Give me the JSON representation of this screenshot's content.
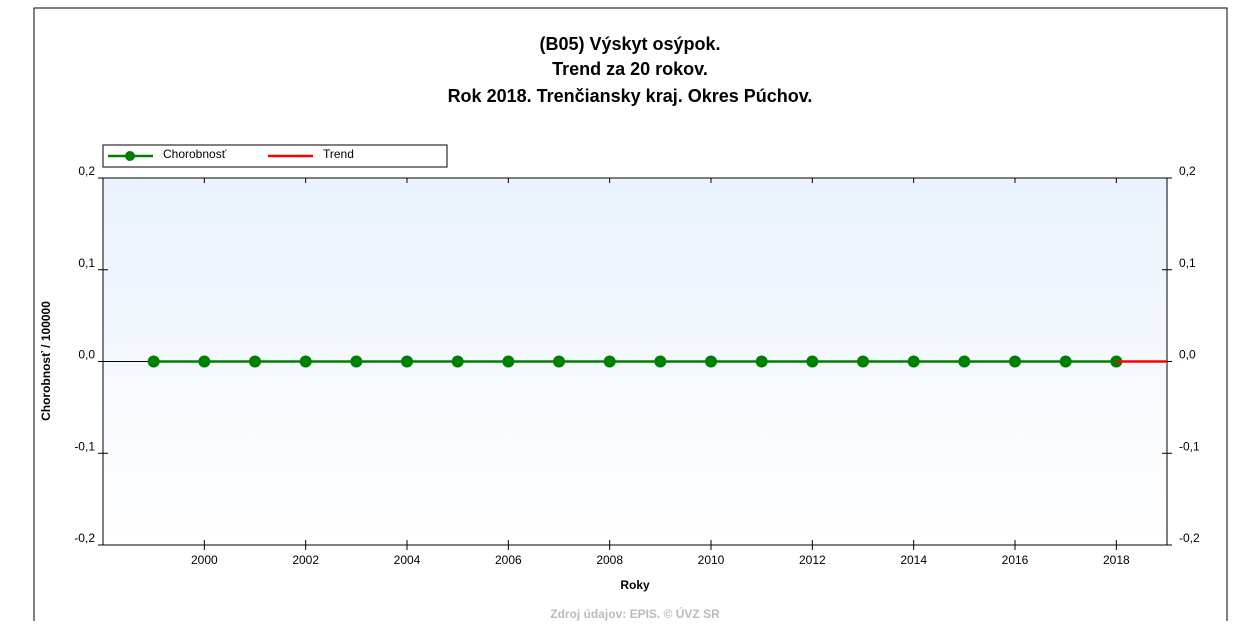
{
  "chart_data": {
    "type": "line",
    "title": [
      "(B05) Výskyt osýpok.",
      "Trend za 20 rokov.",
      "Rok 2018. Trenčiansky kraj. Okres Púchov."
    ],
    "x_label": "Roky",
    "y_label": "Chorobnosť / 100000",
    "source": "Zdroj údajov: EPIS. © ÚVZ SR",
    "x": [
      1999,
      2000,
      2001,
      2002,
      2003,
      2004,
      2005,
      2006,
      2007,
      2008,
      2009,
      2010,
      2011,
      2012,
      2013,
      2014,
      2015,
      2016,
      2017,
      2018
    ],
    "series": [
      {
        "name": "Chorobnosť",
        "color": "#008000",
        "values": [
          0,
          0,
          0,
          0,
          0,
          0,
          0,
          0,
          0,
          0,
          0,
          0,
          0,
          0,
          0,
          0,
          0,
          0,
          0,
          0
        ]
      },
      {
        "name": "Trend",
        "color": "#ff0000",
        "x": [
          2018,
          2019
        ],
        "values": [
          0,
          0
        ]
      }
    ],
    "xlim": [
      1998,
      2019
    ],
    "xticks": [
      2000,
      2002,
      2004,
      2006,
      2008,
      2010,
      2012,
      2014,
      2016,
      2018
    ],
    "ylim": [
      -0.2,
      0.2
    ],
    "yticks": [
      {
        "value": -0.2,
        "label": "-0,2"
      },
      {
        "value": -0.1,
        "label": "-0,1"
      },
      {
        "value": 0,
        "label": "0,0"
      },
      {
        "value": 0.1,
        "label": "0,1"
      },
      {
        "value": 0.2,
        "label": "0,2"
      }
    ],
    "y2lim": [
      -0.2,
      0.2
    ],
    "y2ticks": [
      {
        "value": -0.2,
        "label": "-0,2"
      },
      {
        "value": -0.1,
        "label": "-0,1"
      },
      {
        "value": 0,
        "label": "0,0"
      },
      {
        "value": 0.1,
        "label": "0,1"
      },
      {
        "value": 0.2,
        "label": "0,2"
      }
    ],
    "legend": "top-left"
  }
}
